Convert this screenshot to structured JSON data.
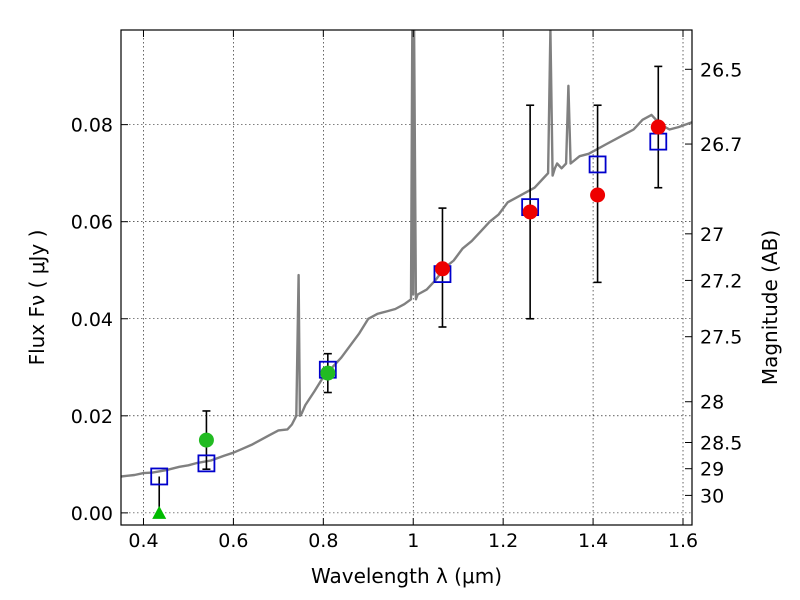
{
  "chart_data": {
    "type": "scatter",
    "xlabel": "Wavelength  λ (μm)",
    "ylabel_left": "Flux  F_ν  ( μJy )",
    "ylabel_right": "Magnitude (AB)",
    "xlim": [
      0.35,
      1.62
    ],
    "ylim": [
      -0.0025,
      0.0995
    ],
    "x_ticks": [
      {
        "value": 0.4,
        "label": "0.4"
      },
      {
        "value": 0.6,
        "label": "0.6"
      },
      {
        "value": 0.8,
        "label": "0.8"
      },
      {
        "value": 1.0,
        "label": "1"
      },
      {
        "value": 1.2,
        "label": "1.2"
      },
      {
        "value": 1.4,
        "label": "1.4"
      },
      {
        "value": 1.6,
        "label": "1.6"
      }
    ],
    "y_ticks_left": [
      {
        "value": 0.0,
        "label": "0.00"
      },
      {
        "value": 0.02,
        "label": "0.02"
      },
      {
        "value": 0.04,
        "label": "0.04"
      },
      {
        "value": 0.06,
        "label": "0.06"
      },
      {
        "value": 0.08,
        "label": "0.08"
      }
    ],
    "y_ticks_right": [
      {
        "flux": 0.0914,
        "label": "26.5"
      },
      {
        "flux": 0.076,
        "label": "26.7"
      },
      {
        "flux": 0.0575,
        "label": "27"
      },
      {
        "flux": 0.0479,
        "label": "27.2"
      },
      {
        "flux": 0.0363,
        "label": "27.5"
      },
      {
        "flux": 0.0229,
        "label": "28"
      },
      {
        "flux": 0.0145,
        "label": "28.5"
      },
      {
        "flux": 0.0091,
        "label": "29"
      },
      {
        "flux": 0.0036,
        "label": "30"
      }
    ],
    "grid": true,
    "series": [
      {
        "kind": "spectrum",
        "color": "#808080",
        "x": [
          0.35,
          0.38,
          0.4,
          0.42,
          0.45,
          0.48,
          0.5,
          0.52,
          0.55,
          0.58,
          0.6,
          0.62,
          0.64,
          0.66,
          0.68,
          0.7,
          0.72,
          0.73,
          0.74,
          0.745,
          0.748,
          0.752,
          0.76,
          0.78,
          0.8,
          0.82,
          0.84,
          0.86,
          0.88,
          0.9,
          0.92,
          0.94,
          0.96,
          0.98,
          0.995,
          0.998,
          1.0,
          1.002,
          1.006,
          1.01,
          1.03,
          1.05,
          1.07,
          1.09,
          1.11,
          1.13,
          1.15,
          1.17,
          1.19,
          1.21,
          1.23,
          1.25,
          1.27,
          1.29,
          1.3,
          1.305,
          1.31,
          1.315,
          1.32,
          1.33,
          1.34,
          1.345,
          1.35,
          1.37,
          1.39,
          1.41,
          1.43,
          1.45,
          1.47,
          1.49,
          1.51,
          1.53,
          1.55,
          1.57,
          1.59,
          1.62
        ],
        "y": [
          0.0075,
          0.0078,
          0.0082,
          0.0083,
          0.0088,
          0.0095,
          0.0098,
          0.0103,
          0.0108,
          0.0118,
          0.0124,
          0.0132,
          0.014,
          0.015,
          0.016,
          0.017,
          0.0172,
          0.0182,
          0.02,
          0.049,
          0.02,
          0.0205,
          0.0222,
          0.025,
          0.028,
          0.03,
          0.032,
          0.0345,
          0.037,
          0.04,
          0.041,
          0.0415,
          0.042,
          0.043,
          0.044,
          0.1,
          0.045,
          0.1,
          0.044,
          0.045,
          0.046,
          0.048,
          0.0505,
          0.052,
          0.0545,
          0.056,
          0.058,
          0.06,
          0.0615,
          0.064,
          0.065,
          0.066,
          0.067,
          0.069,
          0.07,
          0.1,
          0.0695,
          0.071,
          0.072,
          0.071,
          0.072,
          0.088,
          0.072,
          0.0735,
          0.074,
          0.075,
          0.076,
          0.077,
          0.078,
          0.079,
          0.081,
          0.082,
          0.08,
          0.079,
          0.0795,
          0.0805
        ]
      },
      {
        "kind": "model-photometry",
        "color": "#0000cc",
        "x": [
          0.435,
          0.54,
          0.81,
          1.065,
          1.26,
          1.41,
          1.545
        ],
        "y": [
          0.0075,
          0.0102,
          0.0295,
          0.0492,
          0.063,
          0.0718,
          0.0765
        ]
      },
      {
        "kind": "observed-photometry",
        "x": [
          0.435,
          0.54,
          0.81,
          1.065,
          1.26,
          1.41,
          1.545
        ],
        "y": [
          0.0,
          0.015,
          0.0288,
          0.0503,
          0.062,
          0.0655,
          0.0795
        ],
        "err_low": [
          0.0,
          0.006,
          0.004,
          0.012,
          0.022,
          0.018,
          0.0125
        ],
        "err_high": [
          0.0,
          0.006,
          0.004,
          0.0125,
          0.022,
          0.0185,
          0.0125
        ],
        "colors": [
          "#00bb00",
          "#22bb22",
          "#22bb22",
          "#ee0000",
          "#ee0000",
          "#ee0000",
          "#ee0000"
        ],
        "markers": [
          "triangle",
          "circle",
          "circle",
          "circle",
          "circle",
          "circle",
          "circle"
        ]
      }
    ]
  }
}
